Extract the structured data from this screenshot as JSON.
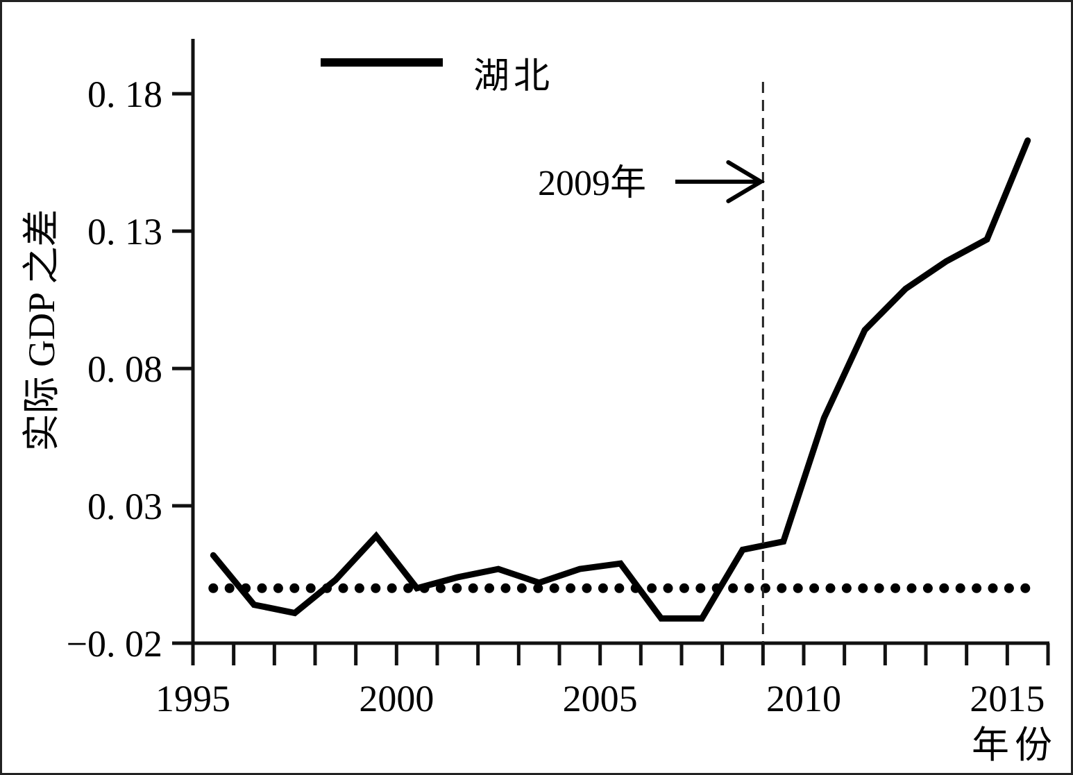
{
  "chart_data": {
    "type": "line",
    "title": "",
    "xlabel": "年份",
    "ylabel": "实际 GDP 之差",
    "xlim": [
      1995,
      2016
    ],
    "ylim": [
      -0.02,
      0.2
    ],
    "x_ticks_major": [
      1995,
      2000,
      2005,
      2010,
      2015
    ],
    "x_tick_labels": [
      "1995",
      "2000",
      "2005",
      "2010",
      "2015"
    ],
    "x_ticks_minor_step": 1,
    "y_ticks": [
      -0.02,
      0.03,
      0.08,
      0.13,
      0.18
    ],
    "y_tick_labels": [
      "−0. 02",
      "0. 03",
      "0. 08",
      "0. 13",
      "0. 18"
    ],
    "grid": false,
    "legend_position": "top-left",
    "series": [
      {
        "name": "湖北",
        "style": "solid",
        "color": "#000000",
        "x": [
          1995.5,
          1996.5,
          1997.5,
          1998.5,
          1999.5,
          2000.5,
          2001.5,
          2002.5,
          2003.5,
          2004.5,
          2005.5,
          2006.5,
          2007.5,
          2008.5,
          2009.5,
          2010.5,
          2011.5,
          2012.5,
          2013.5,
          2014.5,
          2015.5
        ],
        "y": [
          0.012,
          -0.006,
          -0.009,
          0.003,
          0.019,
          0.0,
          0.004,
          0.007,
          0.002,
          0.007,
          0.009,
          -0.011,
          -0.011,
          0.014,
          0.017,
          0.062,
          0.094,
          0.109,
          0.119,
          0.127,
          0.163
        ]
      },
      {
        "style": "dotted",
        "color": "#000000",
        "x": [
          1995.5,
          2015.5
        ],
        "y": [
          0.0,
          0.0
        ]
      }
    ],
    "annotations": [
      {
        "type": "vline",
        "x": 2009,
        "style": "dashed",
        "label": "2009年",
        "arrow_y": 0.148
      }
    ]
  }
}
